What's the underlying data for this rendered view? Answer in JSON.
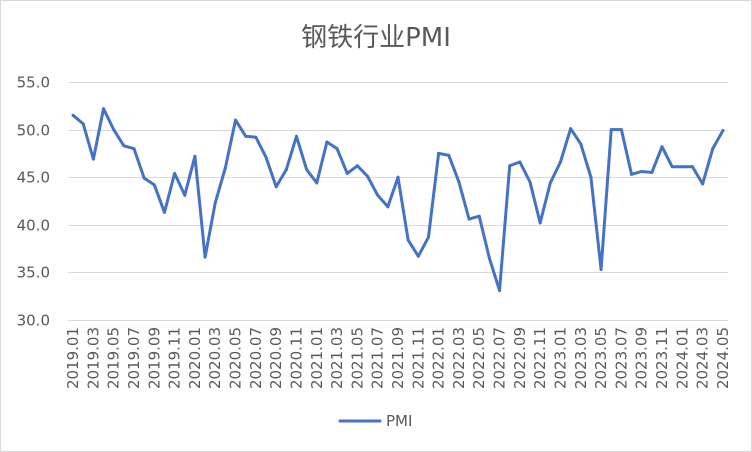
{
  "chart_data": {
    "type": "line",
    "title": "钢铁行业PMI",
    "categories": [
      "2019.01",
      "2019.02",
      "2019.03",
      "2019.04",
      "2019.05",
      "2019.06",
      "2019.07",
      "2019.08",
      "2019.09",
      "2019.10",
      "2019.11",
      "2019.12",
      "2020.01",
      "2020.02",
      "2020.03",
      "2020.04",
      "2020.05",
      "2020.06",
      "2020.07",
      "2020.08",
      "2020.09",
      "2020.10",
      "2020.11",
      "2020.12",
      "2021.01",
      "2021.02",
      "2021.03",
      "2021.04",
      "2021.05",
      "2021.06",
      "2021.07",
      "2021.08",
      "2021.09",
      "2021.10",
      "2021.11",
      "2021.12",
      "2022.01",
      "2022.02",
      "2022.03",
      "2022.04",
      "2022.05",
      "2022.06",
      "2022.07",
      "2022.08",
      "2022.09",
      "2022.10",
      "2022.11",
      "2022.12",
      "2023.01",
      "2023.02",
      "2023.03",
      "2023.04",
      "2023.05",
      "2023.06",
      "2023.07",
      "2023.08",
      "2023.09",
      "2023.10",
      "2023.11",
      "2023.12",
      "2024.01",
      "2024.02",
      "2024.03",
      "2024.04",
      "2024.05"
    ],
    "series": [
      {
        "name": "PMI",
        "color": "#4472C4",
        "values": [
          51.5,
          50.6,
          46.9,
          52.2,
          50.0,
          48.3,
          48.0,
          44.9,
          44.2,
          41.3,
          45.4,
          43.1,
          47.2,
          36.6,
          42.3,
          46.0,
          51.0,
          49.3,
          49.2,
          47.1,
          44.0,
          45.8,
          49.3,
          45.8,
          44.4,
          48.7,
          48.0,
          45.4,
          46.2,
          45.1,
          43.1,
          41.9,
          45.0,
          38.4,
          36.7,
          38.7,
          47.5,
          47.3,
          44.5,
          40.6,
          40.9,
          36.5,
          33.1,
          46.2,
          46.6,
          44.5,
          40.2,
          44.4,
          46.6,
          50.1,
          48.5,
          45.0,
          35.3,
          50.0,
          50.0,
          45.3,
          45.6,
          45.5,
          48.2,
          46.1,
          46.1,
          46.1,
          44.3,
          48.0,
          49.9
        ]
      }
    ],
    "ylim": [
      30,
      55
    ],
    "y_ticks": [
      "30.0",
      "35.0",
      "40.0",
      "45.0",
      "50.0",
      "55.0"
    ],
    "grid": {
      "horizontal": true,
      "vertical": false
    },
    "legend": "bottom",
    "colors": {
      "text": "#595959",
      "grid": "#D9D9D9",
      "border": "#D9D9D9",
      "background": "#FFFFFF"
    }
  }
}
